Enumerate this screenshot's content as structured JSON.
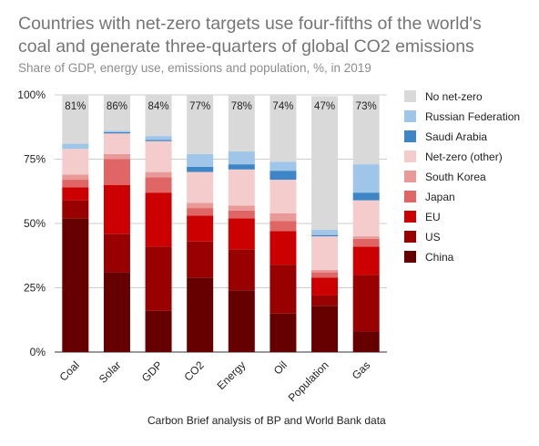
{
  "chart_data": {
    "type": "bar",
    "stacked": true,
    "title_lines": [
      "Countries with net-zero targets use four-fifths of the world's",
      "coal and generate three-quarters of global CO2 emissions"
    ],
    "subtitle": "Share of GDP, energy use, emissions and population, %, in 2019",
    "caption": "Carbon Brief analysis of BP and World Bank data",
    "categories": [
      "Coal",
      "Solar",
      "GDP",
      "CO2",
      "Energy",
      "Oil",
      "Population",
      "Gas"
    ],
    "y_ticks": [
      "0%",
      "25%",
      "50%",
      "75%",
      "100%"
    ],
    "ylim": [
      0,
      100
    ],
    "grid": true,
    "legend_position": "right",
    "series": [
      {
        "name": "China",
        "color": "#660000",
        "values": [
          52,
          31,
          16,
          29,
          24,
          15,
          18,
          8
        ]
      },
      {
        "name": "US",
        "color": "#990000",
        "values": [
          7,
          15,
          25,
          14,
          16,
          19,
          4,
          22
        ]
      },
      {
        "name": "EU",
        "color": "#cc0000",
        "values": [
          5,
          19,
          21,
          10,
          12,
          13,
          7,
          11
        ]
      },
      {
        "name": "Japan",
        "color": "#e06666",
        "values": [
          3,
          10,
          6,
          3,
          3,
          4,
          2,
          3
        ]
      },
      {
        "name": "South Korea",
        "color": "#ea9999",
        "values": [
          2,
          2,
          2,
          2,
          2,
          3,
          1,
          1
        ]
      },
      {
        "name": "Net-zero (other)",
        "color": "#f4cccc",
        "values": [
          10,
          8,
          12,
          12,
          14,
          13,
          13,
          14
        ]
      },
      {
        "name": "Saudi Arabia",
        "color": "#3d85c6",
        "values": [
          0,
          0.5,
          0.5,
          2,
          2,
          3.5,
          0.5,
          3
        ]
      },
      {
        "name": "Russian Federation",
        "color": "#9fc5e8",
        "values": [
          2,
          0.5,
          1.5,
          5,
          5,
          3.5,
          2,
          11
        ]
      },
      {
        "name": "No net-zero",
        "color": "#d9d9d9",
        "values": [
          19,
          14,
          16,
          23,
          22,
          26,
          52,
          27
        ]
      }
    ],
    "data_labels": [
      "81%",
      "86%",
      "84%",
      "77%",
      "78%",
      "74%",
      "47%",
      "73%"
    ],
    "legend": [
      {
        "name": "No net-zero",
        "color": "#d9d9d9"
      },
      {
        "name": "Russian Federation",
        "color": "#9fc5e8"
      },
      {
        "name": "Saudi Arabia",
        "color": "#3d85c6"
      },
      {
        "name": "Net-zero (other)",
        "color": "#f4cccc"
      },
      {
        "name": "South Korea",
        "color": "#ea9999"
      },
      {
        "name": "Japan",
        "color": "#e06666"
      },
      {
        "name": "EU",
        "color": "#cc0000"
      },
      {
        "name": "US",
        "color": "#990000"
      },
      {
        "name": "China",
        "color": "#660000"
      }
    ]
  }
}
